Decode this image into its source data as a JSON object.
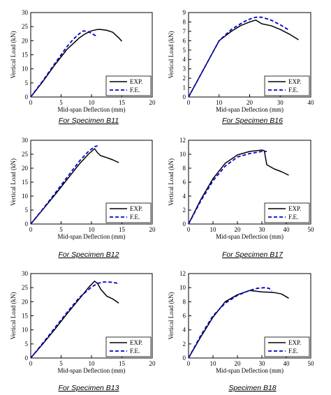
{
  "chart_data": [
    {
      "type": "line",
      "caption": "For Specimen  B11",
      "xlabel": "Mid-span Deflection (mm)",
      "ylabel": "Vertical Load (kN)",
      "xlim": [
        0,
        20
      ],
      "xticks": [
        0,
        5,
        10,
        15,
        20
      ],
      "ylim": [
        0,
        30
      ],
      "yticks": [
        0,
        5,
        10,
        15,
        20,
        25,
        30
      ],
      "legend": "bottom-right",
      "series": [
        {
          "name": "EXP.",
          "style": "solid",
          "color": "#000000",
          "x": [
            0,
            2,
            4,
            6,
            8,
            9,
            10,
            11,
            11.5,
            12.5,
            13.5,
            14.5,
            15
          ],
          "y": [
            0,
            5.5,
            11.5,
            17,
            21,
            22.5,
            23.5,
            24,
            24,
            23.7,
            23,
            21,
            19.8
          ]
        },
        {
          "name": "F.E.",
          "style": "dashed",
          "color": "#0000cc",
          "x": [
            0,
            2,
            4,
            6,
            7,
            8,
            8.7,
            9.5,
            10.5,
            11
          ],
          "y": [
            0,
            5.8,
            12,
            18,
            20.5,
            22.5,
            23.5,
            23.2,
            22,
            21.3
          ]
        }
      ]
    },
    {
      "type": "line",
      "caption": "For Specimen  B16",
      "xlabel": "Mid-span Deflection (mm)",
      "ylabel": "Vertical Load (kN)",
      "xlim": [
        0,
        40
      ],
      "xticks": [
        0,
        10,
        20,
        30,
        40
      ],
      "ylim": [
        0,
        9
      ],
      "yticks": [
        0,
        1,
        2,
        3,
        4,
        5,
        6,
        7,
        8,
        9
      ],
      "legend": "bottom-right",
      "series": [
        {
          "name": "EXP.",
          "style": "solid",
          "color": "#000000",
          "x": [
            0,
            5,
            10,
            14,
            17,
            20,
            22,
            24,
            27,
            30,
            33,
            36
          ],
          "y": [
            0,
            3,
            6,
            7,
            7.6,
            8,
            8.2,
            7.8,
            7.6,
            7.2,
            6.7,
            6.1
          ]
        },
        {
          "name": "F.E.",
          "style": "dashed",
          "color": "#0000cc",
          "x": [
            0,
            5,
            10,
            14,
            18,
            20,
            22,
            24,
            27,
            30,
            33
          ],
          "y": [
            0,
            3,
            6,
            7.2,
            8,
            8.3,
            8.5,
            8.5,
            8.2,
            7.7,
            7.1
          ]
        }
      ]
    },
    {
      "type": "line",
      "caption": "For Specimen  B12",
      "xlabel": "Mid-span Deflection (mm)",
      "ylabel": "Vertical Load (kN)",
      "xlim": [
        0,
        20
      ],
      "xticks": [
        0,
        5,
        10,
        15,
        20
      ],
      "ylim": [
        0,
        30
      ],
      "yticks": [
        0,
        5,
        10,
        15,
        20,
        25,
        30
      ],
      "legend": "bottom-right",
      "series": [
        {
          "name": "EXP.",
          "style": "solid",
          "color": "#000000",
          "x": [
            0,
            2,
            4,
            6,
            8,
            9.5,
            10.5,
            11,
            11.5,
            12.5,
            13.5,
            14.5
          ],
          "y": [
            0,
            5.2,
            10.5,
            16,
            21.5,
            25,
            27,
            25.5,
            24.5,
            23.8,
            23,
            22
          ]
        },
        {
          "name": "F.E.",
          "style": "dashed",
          "color": "#0000cc",
          "x": [
            0,
            2,
            4,
            6,
            8,
            9.5,
            10.5,
            11
          ],
          "y": [
            0,
            5.4,
            11,
            16.8,
            22.5,
            26,
            27.7,
            28
          ]
        }
      ]
    },
    {
      "type": "line",
      "caption": "For Specimen  B17",
      "xlabel": "Mid-span Deflection (mm)",
      "ylabel": "Vertical Load (kN)",
      "xlim": [
        0,
        50
      ],
      "xticks": [
        0,
        10,
        20,
        30,
        40,
        50
      ],
      "ylim": [
        0,
        12
      ],
      "yticks": [
        0,
        2,
        4,
        6,
        8,
        10,
        12
      ],
      "legend": "bottom-right",
      "series": [
        {
          "name": "EXP.",
          "style": "solid",
          "color": "#000000",
          "x": [
            0,
            5,
            10,
            15,
            20,
            25,
            30,
            31,
            32,
            35,
            38,
            41
          ],
          "y": [
            0,
            3.5,
            6.5,
            8.7,
            9.9,
            10.4,
            10.6,
            10.5,
            8.5,
            7.9,
            7.5,
            7
          ]
        },
        {
          "name": "F.E.",
          "style": "dashed",
          "color": "#0000cc",
          "x": [
            0,
            5,
            10,
            15,
            20,
            25,
            30,
            32
          ],
          "y": [
            0,
            3.3,
            6.2,
            8.3,
            9.6,
            10.1,
            10.4,
            10.4
          ]
        }
      ]
    },
    {
      "type": "line",
      "caption": "For Specimen  B13",
      "xlabel": "Mid-span Deflection (mm)",
      "ylabel": "Vertical Load (kN)",
      "xlim": [
        0,
        20
      ],
      "xticks": [
        0,
        5,
        10,
        15,
        20
      ],
      "ylim": [
        0,
        30
      ],
      "yticks": [
        0,
        5,
        10,
        15,
        20,
        25,
        30
      ],
      "legend": "bottom-right",
      "series": [
        {
          "name": "EXP.",
          "style": "solid",
          "color": "#000000",
          "x": [
            0,
            2,
            4,
            6,
            8,
            9.5,
            10.5,
            11,
            11.5,
            12.5,
            13.5,
            14.5
          ],
          "y": [
            0,
            5,
            10.3,
            15.8,
            21,
            25,
            27.3,
            26.5,
            24.5,
            22,
            21,
            19.5
          ]
        },
        {
          "name": "F.E.",
          "style": "dashed",
          "color": "#0000cc",
          "x": [
            0,
            2,
            4,
            6,
            8,
            10,
            11,
            12,
            13,
            14.5
          ],
          "y": [
            0,
            5.3,
            10.8,
            16.3,
            21.5,
            25.2,
            26.5,
            27,
            27,
            26.5
          ]
        }
      ]
    },
    {
      "type": "line",
      "caption": "Specimen  B18",
      "xlabel": "Mid-span Deflection (mm)",
      "ylabel": "Vertical Load (kN)",
      "xlim": [
        0,
        50
      ],
      "xticks": [
        0,
        10,
        20,
        30,
        40,
        50
      ],
      "ylim": [
        0,
        12
      ],
      "yticks": [
        0,
        2,
        4,
        6,
        8,
        10,
        12
      ],
      "legend": "bottom-right",
      "series": [
        {
          "name": "EXP.",
          "style": "solid",
          "color": "#000000",
          "x": [
            0,
            5,
            10,
            15,
            20,
            25,
            30,
            35,
            38,
            41
          ],
          "y": [
            0,
            3,
            5.8,
            8,
            9,
            9.6,
            9.4,
            9.3,
            9.1,
            8.5
          ]
        },
        {
          "name": "F.E.",
          "style": "dashed",
          "color": "#0000cc",
          "x": [
            0,
            5,
            10,
            15,
            20,
            25,
            28,
            31,
            33,
            34
          ],
          "y": [
            0,
            3.2,
            6,
            7.8,
            8.9,
            9.6,
            9.9,
            10,
            9.9,
            9.5
          ]
        }
      ]
    }
  ]
}
